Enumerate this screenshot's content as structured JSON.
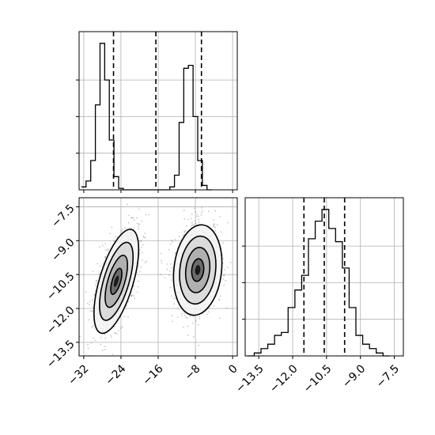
{
  "chart_data": [
    {
      "panel": "top-left",
      "type": "histogram",
      "title": "",
      "xlabel": "",
      "ylabel": "",
      "xlim": [
        -33,
        1
      ],
      "ylim": [
        0,
        1.08
      ],
      "grid": true,
      "bin_start": -32.5,
      "bin_width": 1.0,
      "normalized_counts": [
        0.02,
        0.06,
        0.2,
        0.58,
        1.0,
        0.75,
        0.34,
        0.09,
        0.01,
        0.0,
        0.0,
        0.0,
        0.0,
        0.0,
        0.0,
        0.0,
        0.0,
        0.0,
        0.0,
        0.02,
        0.1,
        0.46,
        0.83,
        0.85,
        0.5,
        0.2,
        0.03,
        0.0
      ],
      "quantile_lines": [
        -25.6,
        -16.5,
        -6.7
      ],
      "xticks": [
        -32,
        -24,
        -16,
        -8,
        0
      ]
    },
    {
      "panel": "bottom-left",
      "type": "scatter",
      "title": "",
      "xlabel": "",
      "ylabel": "",
      "xlim": [
        -33,
        1
      ],
      "ylim": [
        -14.1,
        -7.1
      ],
      "grid": true,
      "xticks": [
        -32,
        -24,
        -16,
        -8,
        0
      ],
      "xtick_labels": [
        "−32",
        "−24",
        "−16",
        "−8",
        "0"
      ],
      "yticks": [
        -7.5,
        -9.0,
        -10.5,
        -12.0,
        -13.5
      ],
      "ytick_labels": [
        "−7.5",
        "−9.0",
        "−10.5",
        "−12.0",
        "−13.5"
      ],
      "clusters": [
        {
          "center": [
            -25.0,
            -10.8
          ],
          "sx": 2.4,
          "sy": 1.15,
          "rho": 0.62
        },
        {
          "center": [
            -7.5,
            -10.3
          ],
          "sx": 2.6,
          "sy": 1.0,
          "rho": 0.15
        }
      ],
      "contour_levels_sigma": [
        0.5,
        1.0,
        1.5,
        2.0
      ]
    },
    {
      "panel": "bottom-right",
      "type": "histogram",
      "title": "",
      "xlabel": "",
      "ylabel": "",
      "xlim": [
        -14.1,
        -7.1
      ],
      "ylim": [
        0,
        1.08
      ],
      "grid": true,
      "bin_start": -14.0,
      "bin_width": 0.3,
      "normalized_counts": [
        0.0,
        0.02,
        0.05,
        0.08,
        0.14,
        0.16,
        0.33,
        0.45,
        0.55,
        0.8,
        0.92,
        1.0,
        0.87,
        0.78,
        0.6,
        0.33,
        0.14,
        0.08,
        0.05,
        0.02,
        0.0
      ],
      "quantile_lines": [
        -11.5,
        -10.6,
        -9.7
      ],
      "xticks": [
        -13.5,
        -12.0,
        -10.5,
        -9.0,
        -7.5
      ],
      "xtick_labels": [
        "−13.5",
        "−12.0",
        "−10.5",
        "−9.0",
        "−7.5"
      ]
    }
  ]
}
